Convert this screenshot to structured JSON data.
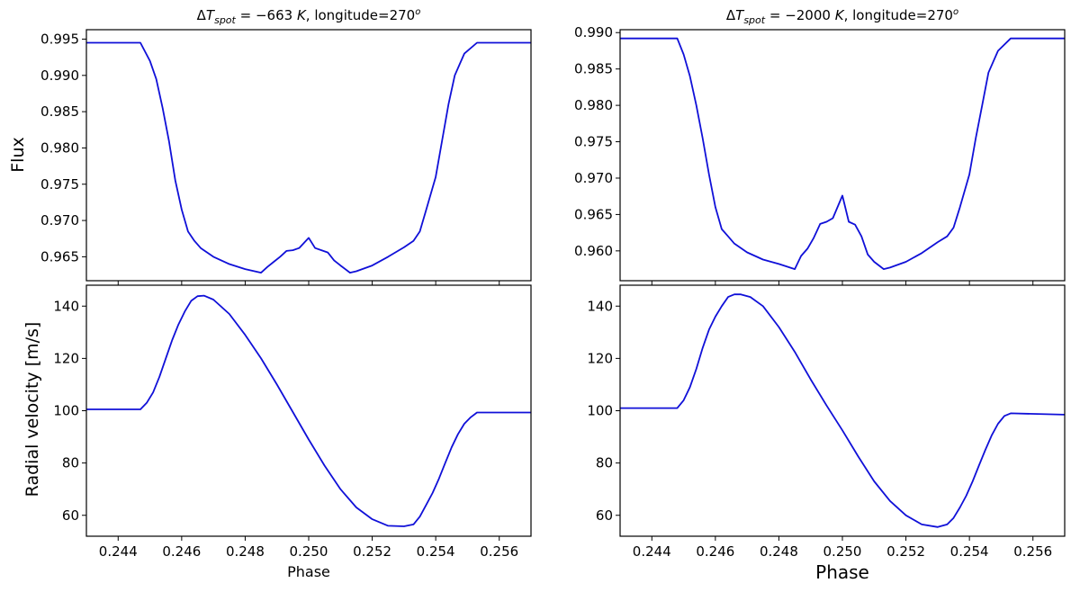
{
  "chart_data": [
    {
      "type": "line",
      "panel": "top-left",
      "title": "ΔT_spot = −663 K, longitude=270°",
      "title_parts": {
        "delta": "Δ",
        "t": "T",
        "sub": "spot",
        "eq": " = −663 ",
        "k": "K",
        "rest": ", longitude=270",
        "sup": "o"
      },
      "xlabel": "",
      "ylabel": "Flux",
      "xlim": [
        0.243,
        0.257
      ],
      "ylim": [
        0.9617,
        0.9963
      ],
      "yticks": [
        "0.965",
        "0.970",
        "0.975",
        "0.980",
        "0.985",
        "0.990",
        "0.995"
      ],
      "ytick_values": [
        0.965,
        0.97,
        0.975,
        0.98,
        0.985,
        0.99,
        0.995
      ],
      "series": [
        {
          "color": "#1010d8",
          "x": [
            0.243,
            0.2447,
            0.245,
            0.2452,
            0.2454,
            0.2456,
            0.2458,
            0.246,
            0.2462,
            0.2464,
            0.2466,
            0.247,
            0.2475,
            0.248,
            0.2485,
            0.2487,
            0.2489,
            0.2491,
            0.2493,
            0.2495,
            0.2497,
            0.25,
            0.2502,
            0.2504,
            0.2506,
            0.2508,
            0.251,
            0.2513,
            0.2515,
            0.252,
            0.2525,
            0.253,
            0.2533,
            0.2535,
            0.2537,
            0.254,
            0.2542,
            0.2544,
            0.2546,
            0.2549,
            0.2553,
            0.257
          ],
          "values": [
            0.9945,
            0.9945,
            0.992,
            0.9895,
            0.9855,
            0.981,
            0.9755,
            0.9715,
            0.9685,
            0.9672,
            0.9662,
            0.965,
            0.964,
            0.9633,
            0.9628,
            0.9636,
            0.9643,
            0.965,
            0.9658,
            0.9659,
            0.9662,
            0.9676,
            0.9662,
            0.9659,
            0.9656,
            0.9645,
            0.9638,
            0.9628,
            0.963,
            0.9638,
            0.965,
            0.9663,
            0.9672,
            0.9685,
            0.9715,
            0.976,
            0.981,
            0.986,
            0.99,
            0.993,
            0.9945,
            0.9945
          ]
        }
      ]
    },
    {
      "type": "line",
      "panel": "top-right",
      "title": "ΔT_spot = −2000 K, longitude=270°",
      "title_parts": {
        "delta": "Δ",
        "t": "T",
        "sub": "spot",
        "eq": " = −2000 ",
        "k": "K",
        "rest": ", longitude=270",
        "sup": "o"
      },
      "xlabel": "",
      "ylabel": "",
      "xlim": [
        0.243,
        0.257
      ],
      "ylim": [
        0.9559,
        0.9904
      ],
      "yticks": [
        "0.960",
        "0.965",
        "0.970",
        "0.975",
        "0.980",
        "0.985",
        "0.990"
      ],
      "ytick_values": [
        0.96,
        0.965,
        0.97,
        0.975,
        0.98,
        0.985,
        0.99
      ],
      "series": [
        {
          "color": "#1010d8",
          "x": [
            0.243,
            0.2448,
            0.245,
            0.2452,
            0.2454,
            0.2456,
            0.2458,
            0.246,
            0.2462,
            0.2464,
            0.2466,
            0.247,
            0.2475,
            0.248,
            0.2485,
            0.2487,
            0.2489,
            0.2491,
            0.2493,
            0.2495,
            0.2497,
            0.25,
            0.2502,
            0.2504,
            0.2506,
            0.2508,
            0.251,
            0.2513,
            0.2515,
            0.252,
            0.2525,
            0.253,
            0.2533,
            0.2535,
            0.2537,
            0.254,
            0.2542,
            0.2544,
            0.2546,
            0.2549,
            0.2553,
            0.257
          ],
          "values": [
            0.9892,
            0.9892,
            0.987,
            0.984,
            0.98,
            0.9755,
            0.9705,
            0.966,
            0.963,
            0.962,
            0.961,
            0.9598,
            0.9588,
            0.9582,
            0.9575,
            0.9593,
            0.9603,
            0.9618,
            0.9637,
            0.964,
            0.9645,
            0.9676,
            0.964,
            0.9636,
            0.962,
            0.9595,
            0.9585,
            0.9575,
            0.9577,
            0.9585,
            0.9597,
            0.9612,
            0.962,
            0.9632,
            0.966,
            0.9705,
            0.9755,
            0.98,
            0.9845,
            0.9875,
            0.9892,
            0.9892
          ]
        }
      ]
    },
    {
      "type": "line",
      "panel": "bottom-left",
      "title": "",
      "xlabel": "Phase",
      "ylabel": "Radial velocity [m/s]",
      "xlim": [
        0.243,
        0.257
      ],
      "ylim": [
        52,
        148
      ],
      "yticks": [
        "60",
        "80",
        "100",
        "120",
        "140"
      ],
      "ytick_values": [
        60,
        80,
        100,
        120,
        140
      ],
      "xticks": [
        "0.244",
        "0.246",
        "0.248",
        "0.250",
        "0.252",
        "0.254",
        "0.256"
      ],
      "xtick_values": [
        0.244,
        0.246,
        0.248,
        0.25,
        0.252,
        0.254,
        0.256
      ],
      "series": [
        {
          "color": "#1010d8",
          "x": [
            0.243,
            0.2447,
            0.2449,
            0.2451,
            0.2453,
            0.2455,
            0.2457,
            0.2459,
            0.2461,
            0.2463,
            0.2465,
            0.2467,
            0.247,
            0.2475,
            0.248,
            0.2485,
            0.249,
            0.2495,
            0.25,
            0.2505,
            0.251,
            0.2515,
            0.252,
            0.2525,
            0.253,
            0.2533,
            0.2535,
            0.2537,
            0.2539,
            0.2541,
            0.2543,
            0.2545,
            0.2547,
            0.2549,
            0.2551,
            0.2553,
            0.257
          ],
          "values": [
            100.5,
            100.5,
            103.0,
            107.0,
            113.0,
            120.0,
            127.0,
            133.0,
            138.0,
            142.0,
            143.8,
            144.0,
            142.5,
            137.0,
            129.0,
            120.0,
            110.0,
            99.5,
            89.0,
            79.0,
            70.0,
            63.0,
            58.5,
            56.0,
            55.8,
            56.5,
            59.5,
            64.0,
            68.5,
            74.0,
            80.0,
            86.0,
            91.0,
            95.0,
            97.5,
            99.3,
            99.3
          ]
        }
      ]
    },
    {
      "type": "line",
      "panel": "bottom-right",
      "title": "",
      "xlabel": "Phase",
      "ylabel": "",
      "xlim": [
        0.243,
        0.257
      ],
      "ylim": [
        52,
        148
      ],
      "yticks": [
        "60",
        "80",
        "100",
        "120",
        "140"
      ],
      "ytick_values": [
        60,
        80,
        100,
        120,
        140
      ],
      "xticks": [
        "0.244",
        "0.246",
        "0.248",
        "0.250",
        "0.252",
        "0.254",
        "0.256"
      ],
      "xtick_values": [
        0.244,
        0.246,
        0.248,
        0.25,
        0.252,
        0.254,
        0.256
      ],
      "series": [
        {
          "color": "#1010d8",
          "x": [
            0.243,
            0.2448,
            0.245,
            0.2452,
            0.2454,
            0.2456,
            0.2458,
            0.246,
            0.2462,
            0.2464,
            0.2466,
            0.2468,
            0.2471,
            0.2475,
            0.248,
            0.2485,
            0.249,
            0.2495,
            0.25,
            0.2505,
            0.251,
            0.2515,
            0.252,
            0.2525,
            0.253,
            0.2533,
            0.2535,
            0.2537,
            0.2539,
            0.2541,
            0.2543,
            0.2545,
            0.2547,
            0.2549,
            0.2551,
            0.2553,
            0.257
          ],
          "values": [
            101.0,
            101.0,
            104.0,
            109.0,
            116.0,
            124.0,
            131.0,
            136.0,
            140.0,
            143.5,
            144.5,
            144.5,
            143.5,
            140.0,
            132.0,
            122.5,
            112.0,
            102.0,
            92.5,
            82.5,
            73.0,
            65.5,
            60.0,
            56.5,
            55.5,
            56.5,
            59.0,
            63.0,
            67.5,
            73.0,
            79.0,
            85.0,
            90.5,
            95.0,
            98.0,
            99.0,
            98.5
          ]
        }
      ]
    }
  ]
}
